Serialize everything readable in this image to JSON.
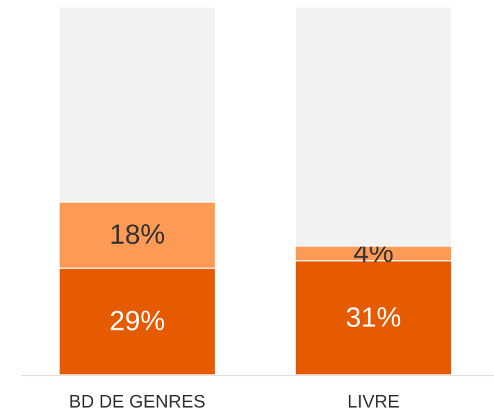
{
  "chart_data": {
    "type": "stacked_bar",
    "categories": [
      "BD DE GENRES",
      "LIVRE"
    ],
    "series": [
      {
        "color": "#e65a00",
        "label_color": "#ffffff",
        "values": [
          29,
          31
        ],
        "value_labels": [
          "29%",
          "31%"
        ]
      },
      {
        "color": "#fd9a55",
        "label_color": "#333333",
        "values": [
          18,
          4
        ],
        "value_labels": [
          "18%",
          "4%"
        ]
      },
      {
        "color": "#f2f2f2",
        "values": [
          53,
          65
        ]
      }
    ],
    "ylim": [
      0,
      100
    ]
  }
}
